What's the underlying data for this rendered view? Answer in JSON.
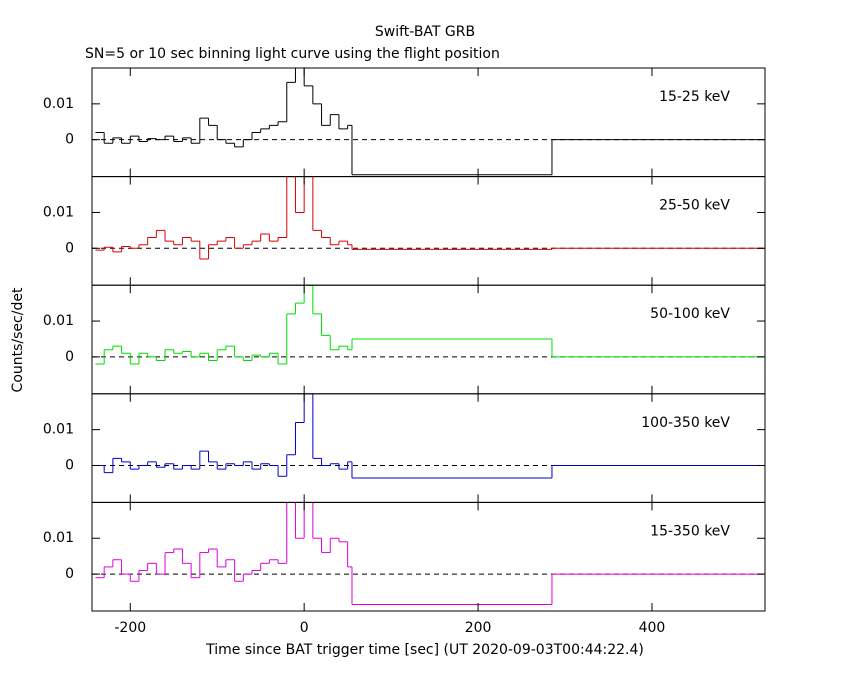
{
  "chart_data": [
    {
      "type": "step",
      "title": "Swift-BAT GRB",
      "subtitle": "SN=5 or 10 sec binning light curve using the flight position",
      "label": "15-25 keV",
      "color": "#000000",
      "x": [
        -240,
        -230,
        -220,
        -210,
        -200,
        -190,
        -180,
        -170,
        -160,
        -150,
        -140,
        -130,
        -120,
        -110,
        -100,
        -90,
        -80,
        -70,
        -60,
        -50,
        -40,
        -30,
        -20,
        -10,
        0,
        10,
        20,
        30,
        40,
        50,
        55,
        285
      ],
      "values": [
        0.002,
        -0.001,
        0.0005,
        -0.001,
        0.001,
        -0.0005,
        0.0003,
        0,
        0.001,
        -0.0005,
        0.0005,
        -0.001,
        0.006,
        0.004,
        0,
        -0.001,
        -0.002,
        0,
        0.002,
        0.003,
        0.004,
        0.005,
        0.016,
        0.02,
        0.015,
        0.01,
        0.004,
        0.007,
        0.003,
        0.004,
        -0.0098,
        0
      ],
      "xlim": [
        -244,
        530
      ],
      "ylim": [
        -0.0103,
        0.02
      ],
      "xticks": [
        -200,
        0,
        200,
        400
      ],
      "yticks": [
        0,
        0.01
      ]
    },
    {
      "type": "step",
      "label": "25-50 keV",
      "color": "#dd0000",
      "x": [
        -240,
        -230,
        -220,
        -210,
        -200,
        -190,
        -180,
        -170,
        -160,
        -150,
        -140,
        -130,
        -120,
        -110,
        -100,
        -90,
        -80,
        -70,
        -60,
        -50,
        -40,
        -30,
        -20,
        -10,
        0,
        10,
        20,
        30,
        40,
        50,
        55,
        285
      ],
      "values": [
        -0.0005,
        0.0003,
        -0.001,
        0.0005,
        0,
        0.001,
        0.003,
        0.005,
        0.002,
        0.001,
        0.003,
        0.002,
        -0.003,
        0.001,
        0.002,
        0.003,
        0,
        0.001,
        0.002,
        0.004,
        0.002,
        0.003,
        0.02,
        0.01,
        0.02,
        0.005,
        0.003,
        0.001,
        0.002,
        0.001,
        -0.0003,
        0
      ],
      "xlim": [
        -244,
        530
      ],
      "ylim": [
        -0.0103,
        0.02
      ],
      "xticks": [
        -200,
        0,
        200,
        400
      ],
      "yticks": [
        0,
        0.01
      ]
    },
    {
      "type": "step",
      "label": "50-100 keV",
      "color": "#00dd00",
      "y_label": "Counts/sec/det",
      "x": [
        -240,
        -230,
        -220,
        -210,
        -200,
        -190,
        -180,
        -170,
        -160,
        -150,
        -140,
        -130,
        -120,
        -110,
        -100,
        -90,
        -80,
        -70,
        -60,
        -50,
        -40,
        -30,
        -20,
        -10,
        0,
        10,
        20,
        30,
        40,
        50,
        55,
        285
      ],
      "values": [
        -0.002,
        0.002,
        0.003,
        0.001,
        -0.002,
        0.001,
        0,
        -0.001,
        0.002,
        0.001,
        0.0015,
        0,
        0.001,
        -0.001,
        0.002,
        0.003,
        0,
        -0.001,
        0.0005,
        0,
        0.001,
        -0.002,
        0.012,
        0.015,
        0.02,
        0.012,
        0.006,
        0.002,
        0.003,
        0.002,
        0.005,
        0
      ],
      "xlim": [
        -244,
        530
      ],
      "ylim": [
        -0.0103,
        0.02
      ],
      "xticks": [
        -200,
        0,
        200,
        400
      ],
      "yticks": [
        0,
        0.01
      ]
    },
    {
      "type": "step",
      "label": "100-350 keV",
      "color": "#0000cc",
      "x": [
        -240,
        -230,
        -220,
        -210,
        -200,
        -190,
        -180,
        -170,
        -160,
        -150,
        -140,
        -130,
        -120,
        -110,
        -100,
        -90,
        -80,
        -70,
        -60,
        -50,
        -40,
        -30,
        -20,
        -10,
        0,
        10,
        20,
        30,
        40,
        50,
        55,
        285
      ],
      "values": [
        0,
        -0.002,
        0.002,
        0.001,
        -0.001,
        0,
        0.001,
        -0.0005,
        0.0005,
        -0.001,
        0,
        -0.001,
        0.004,
        0.001,
        -0.001,
        0.0005,
        0,
        0.001,
        -0.001,
        0.0005,
        0,
        -0.003,
        0.003,
        0.012,
        0.02,
        0.002,
        0,
        0.0005,
        -0.001,
        0.001,
        -0.0035,
        0
      ],
      "xlim": [
        -244,
        530
      ],
      "ylim": [
        -0.0103,
        0.02
      ],
      "xticks": [
        -200,
        0,
        200,
        400
      ],
      "yticks": [
        0,
        0.01
      ]
    },
    {
      "type": "step",
      "label": "15-350 keV",
      "color": "#dd00dd",
      "x_label": "Time since BAT trigger time [sec] (UT 2020-09-03T00:44:22.4)",
      "x": [
        -240,
        -230,
        -220,
        -210,
        -200,
        -190,
        -180,
        -170,
        -160,
        -150,
        -140,
        -130,
        -120,
        -110,
        -100,
        -90,
        -80,
        -70,
        -60,
        -50,
        -40,
        -30,
        -20,
        -10,
        0,
        10,
        20,
        30,
        40,
        50,
        55,
        285
      ],
      "values": [
        -0.001,
        0.002,
        0.004,
        0,
        -0.002,
        0.001,
        0.003,
        0,
        0.006,
        0.007,
        0.003,
        -0.001,
        0.006,
        0.007,
        0.002,
        0.004,
        -0.002,
        0,
        0.001,
        0.003,
        0.004,
        0.003,
        0.02,
        0.01,
        0.02,
        0.01,
        0.006,
        0.01,
        0.009,
        0.002,
        -0.0085,
        0
      ],
      "xlim": [
        -244,
        530
      ],
      "ylim": [
        -0.0103,
        0.02
      ],
      "xticks": [
        -200,
        0,
        200,
        400
      ],
      "yticks": [
        0,
        0.01
      ]
    }
  ]
}
